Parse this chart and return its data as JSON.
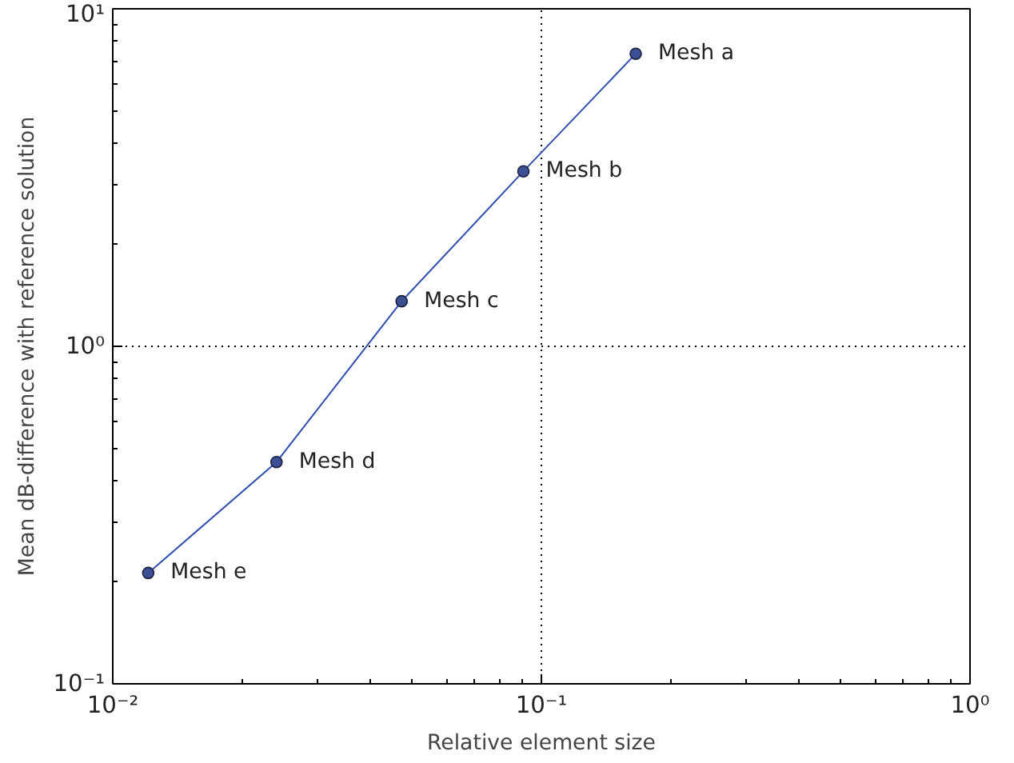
{
  "chart_data": {
    "type": "line",
    "xlabel": "Relative element size",
    "ylabel": "Mean dB-difference with reference solution",
    "x": [
      0.0121,
      0.0241,
      0.0472,
      0.0908,
      0.166
    ],
    "series": [
      {
        "color": "#2f4fb0",
        "values": [
          0.213,
          0.454,
          1.36,
          3.3,
          7.36
        ]
      }
    ],
    "log": "xy",
    "marker": "circle",
    "line_style": "solid",
    "grid": true,
    "xlim": [
      0.01,
      1
    ],
    "ylim": [
      0.1,
      10
    ],
    "xticks": [
      {
        "value": 0.01,
        "label": "10⁻²"
      },
      {
        "value": 0.1,
        "label": "10⁻¹"
      },
      {
        "value": 1,
        "label": "10⁰"
      }
    ],
    "yticks": [
      {
        "value": 0.1,
        "label": "10⁻¹"
      },
      {
        "value": 1,
        "label": "10⁰"
      },
      {
        "value": 10,
        "label": "10¹"
      }
    ],
    "annotations": [
      {
        "text": "Mesh e",
        "x": 0.0121,
        "y": 0.213
      },
      {
        "text": "Mesh d",
        "x": 0.0241,
        "y": 0.454
      },
      {
        "text": "Mesh c",
        "x": 0.0472,
        "y": 1.36
      },
      {
        "text": "Mesh b",
        "x": 0.0908,
        "y": 3.3
      },
      {
        "text": "Mesh a",
        "x": 0.166,
        "y": 7.36
      }
    ]
  }
}
